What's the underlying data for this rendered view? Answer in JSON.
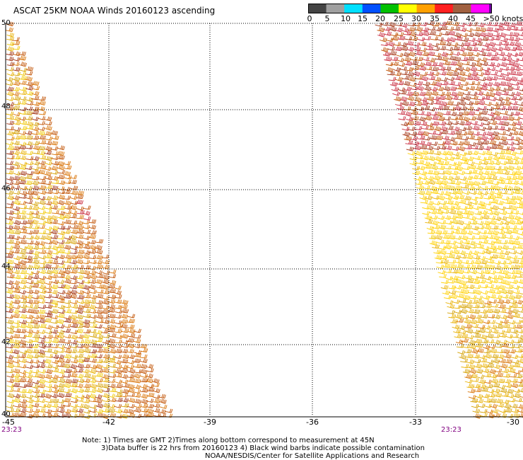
{
  "title": "ASCAT 25KM NOAA Winds 20160123 ascending",
  "legend": {
    "labels": [
      "0",
      "5",
      "10",
      "15",
      "20",
      "25",
      "30",
      "35",
      "40",
      "45",
      ">50 knots"
    ],
    "colors": [
      "#444444",
      "#a0a0a0",
      "#00e0ff",
      "#0050ff",
      "#00c000",
      "#ffff00",
      "#ffa000",
      "#ff2020",
      "#a06040",
      "#ff00ff",
      "#7000a0"
    ]
  },
  "map": {
    "lat_labels": [
      "50",
      "48",
      "46",
      "44",
      "42",
      "40"
    ],
    "lon_labels": [
      "-45",
      "-42",
      "-39",
      "-36",
      "-33",
      "-30"
    ],
    "time_labels": [
      "23:23",
      "23:23"
    ],
    "gridlines": "dotted",
    "barb_colors": [
      "#d4a000",
      "#e8b000",
      "#f0c800",
      "#d87000",
      "#c05000",
      "#a03010",
      "#c8283c",
      "#ffd000"
    ]
  },
  "notes": [
    "Note: 1) Times are GMT 2)Times along bottom correspond to measurement at 45N",
    "3)Data buffer is 22 hrs from 20160123 4) Black wind barbs indicate possible contamination",
    "NOAA/NESDIS/Center for Satellite Applications and Research"
  ]
}
